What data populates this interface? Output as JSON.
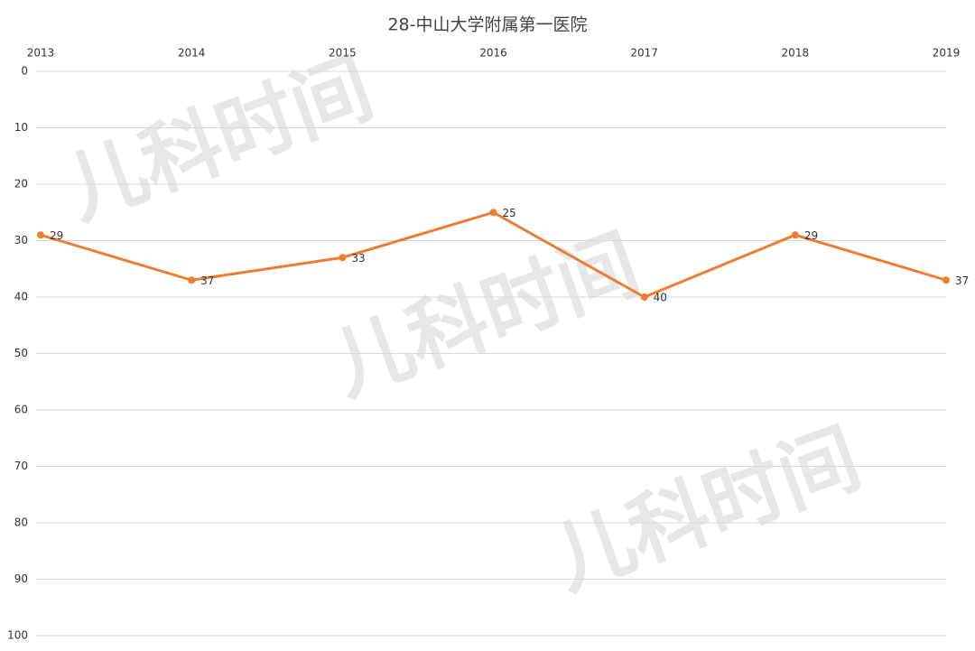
{
  "chart_data": {
    "type": "line",
    "title": "28-中山大学附属第一医院",
    "categories": [
      "2013",
      "2014",
      "2015",
      "2016",
      "2017",
      "2018",
      "2019"
    ],
    "values": [
      29,
      37,
      33,
      25,
      40,
      29,
      37
    ],
    "color": "#ed7d31",
    "ylim": [
      0,
      100
    ],
    "yticks": [
      0,
      10,
      20,
      30,
      40,
      50,
      60,
      70,
      80,
      90,
      100
    ],
    "y_reversed": true,
    "x_axis_position": "top",
    "grid": true,
    "data_labels": true,
    "watermark": "儿科时间"
  }
}
